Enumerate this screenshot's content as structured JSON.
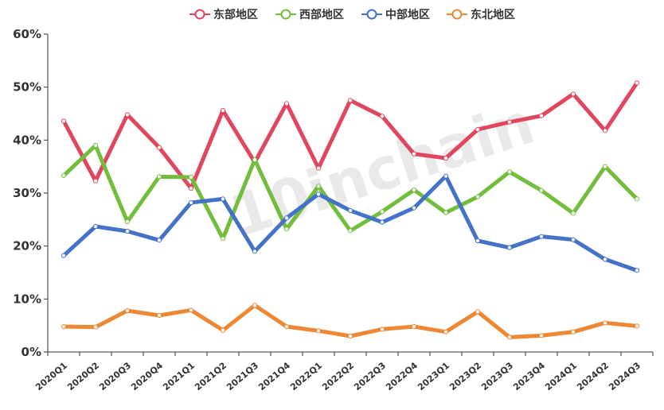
{
  "watermark": "10inchain",
  "chart_data": {
    "type": "line",
    "categories": [
      "2020Q1",
      "2020Q2",
      "2020Q3",
      "2020Q4",
      "2021Q1",
      "2021Q2",
      "2021Q3",
      "2021Q4",
      "2022Q1",
      "2022Q2",
      "2022Q3",
      "2022Q4",
      "2023Q1",
      "2023Q2",
      "2023Q3",
      "2023Q4",
      "2024Q1",
      "2024Q2",
      "2024Q3"
    ],
    "ylim": [
      0,
      60
    ],
    "yticks": [
      0,
      10,
      20,
      30,
      40,
      50,
      60
    ],
    "ytick_labels": [
      "0%",
      "10%",
      "20%",
      "30%",
      "40%",
      "50%",
      "60%"
    ],
    "grid": false,
    "legend_position": "top",
    "series": [
      {
        "name": "东部地区",
        "color": "#e0475e",
        "values": [
          43.6,
          32.3,
          44.8,
          38.6,
          30.9,
          45.6,
          35.8,
          46.9,
          34.7,
          47.5,
          44.5,
          37.4,
          36.6,
          42.0,
          43.4,
          44.6,
          48.7,
          41.8,
          50.8
        ]
      },
      {
        "name": "西部地区",
        "color": "#72be3c",
        "values": [
          33.3,
          39.0,
          24.6,
          33.1,
          33.0,
          21.4,
          36.3,
          23.2,
          31.3,
          22.9,
          26.5,
          30.6,
          26.3,
          29.3,
          34.0,
          30.5,
          26.2,
          35.0,
          28.9
        ]
      },
      {
        "name": "中部地区",
        "color": "#4472c8",
        "values": [
          18.2,
          23.7,
          22.8,
          21.1,
          28.2,
          28.9,
          19.0,
          25.3,
          29.8,
          26.7,
          24.5,
          27.2,
          33.2,
          21.0,
          19.7,
          21.8,
          21.2,
          17.5,
          15.4
        ]
      },
      {
        "name": "东北地区",
        "color": "#ee8834",
        "values": [
          4.8,
          4.7,
          7.8,
          6.9,
          7.9,
          4.1,
          8.8,
          4.8,
          4.0,
          3.0,
          4.3,
          4.8,
          3.8,
          7.6,
          2.8,
          3.1,
          3.8,
          5.5,
          4.9
        ]
      }
    ]
  }
}
